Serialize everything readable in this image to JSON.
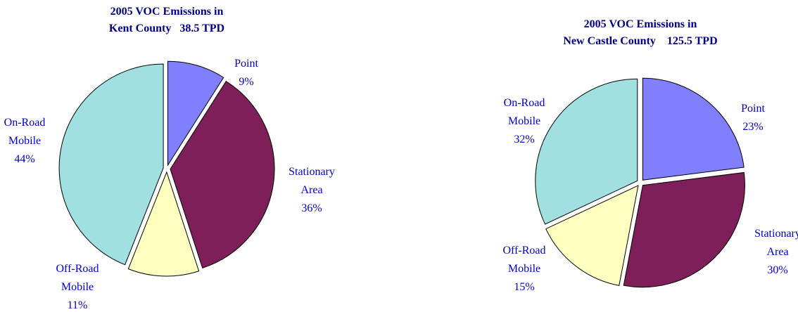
{
  "chart_data": [
    {
      "type": "pie",
      "title": [
        "2005 VOC Emissions in",
        "Kent County   38.5 TPD"
      ],
      "categories": [
        "Point",
        "Stationary Area",
        "Off-Road Mobile",
        "On-Road Mobile"
      ],
      "values": [
        9,
        36,
        11,
        44
      ],
      "value_labels": [
        "9%",
        "36%",
        "11%",
        "44%"
      ],
      "colors": [
        "#8080ff",
        "#7f1f5a",
        "#ffffc0",
        "#a0e0e0"
      ]
    },
    {
      "type": "pie",
      "title": [
        "2005 VOC Emissions in",
        "New Castle County    125.5 TPD"
      ],
      "categories": [
        "Point",
        "Stationary Area",
        "Off-Road Mobile",
        "On-Road Mobile"
      ],
      "values": [
        23,
        30,
        15,
        32
      ],
      "value_labels": [
        "23%",
        "30%",
        "15%",
        "32%"
      ],
      "colors": [
        "#8080ff",
        "#7f1f5a",
        "#ffffc0",
        "#a0e0e0"
      ]
    }
  ]
}
